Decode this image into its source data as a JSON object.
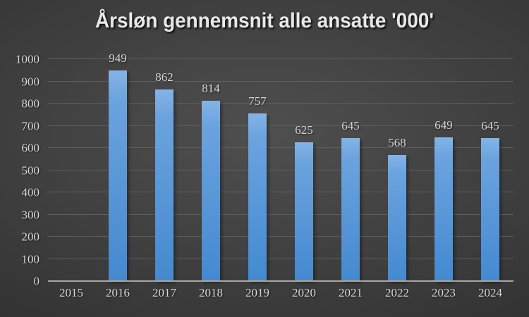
{
  "chart_data": {
    "type": "bar",
    "title": "Årsløn gennemsnit alle ansatte '000'",
    "categories": [
      "2015",
      "2016",
      "2017",
      "2018",
      "2019",
      "2020",
      "2021",
      "2022",
      "2023",
      "2024"
    ],
    "values": [
      null,
      949,
      862,
      814,
      757,
      625,
      645,
      568,
      649,
      645
    ],
    "xlabel": "",
    "ylabel": "",
    "ylim": [
      0,
      1000
    ],
    "yticks": [
      0,
      100,
      200,
      300,
      400,
      500,
      600,
      700,
      800,
      900,
      1000
    ],
    "grid": true,
    "legend": false,
    "data_labels": true,
    "colors": {
      "bar_top": "#6ba3de",
      "bar_bottom": "#4489d0",
      "background_center": "#4f4f4f",
      "background_edge": "#222222",
      "gridline": "#5e5e5e",
      "axis_line": "#a6a6a6",
      "label": "#d6d6d6",
      "title": "#e8e8e8"
    }
  }
}
